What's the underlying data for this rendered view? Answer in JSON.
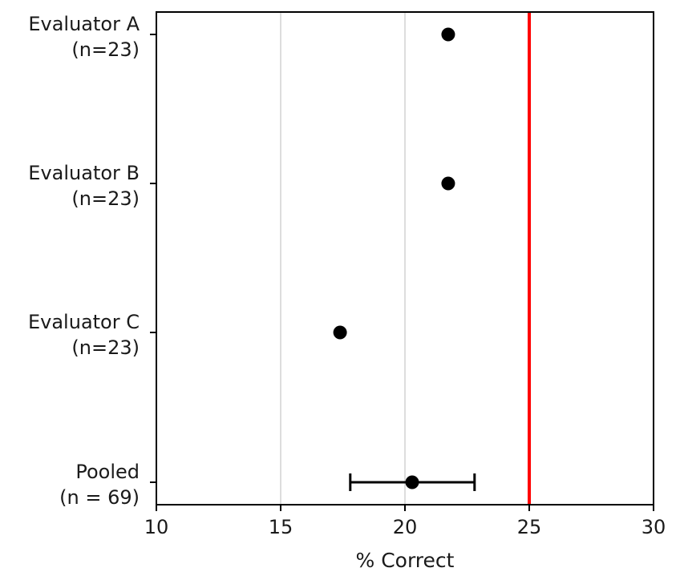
{
  "chart_data": {
    "type": "scatter",
    "title": "",
    "xlabel": "% Correct",
    "ylabel": "",
    "xlim": [
      10,
      30
    ],
    "xticks": [
      10,
      15,
      20,
      25,
      30
    ],
    "x_tick_labels": [
      "10",
      "15",
      "20",
      "25",
      "30"
    ],
    "grid": "vertical lines at x = 15 and 20",
    "categories": [
      {
        "line1": "Evaluator A",
        "line2": "(n=23)"
      },
      {
        "line1": "Evaluator B",
        "line2": "(n=23)"
      },
      {
        "line1": "Evaluator C",
        "line2": "(n=23)"
      },
      {
        "line1": "Pooled",
        "line2": "(n = 69)"
      }
    ],
    "values": [
      21.74,
      21.74,
      17.39,
      20.29
    ],
    "error_bars": [
      null,
      null,
      null,
      {
        "low": 17.8,
        "high": 22.8
      }
    ],
    "reference_line": {
      "x": 25,
      "color": "#ff0000"
    },
    "point_color": "#000000",
    "gridline_x": [
      15,
      20
    ],
    "gridline_color": "#dddddd"
  }
}
